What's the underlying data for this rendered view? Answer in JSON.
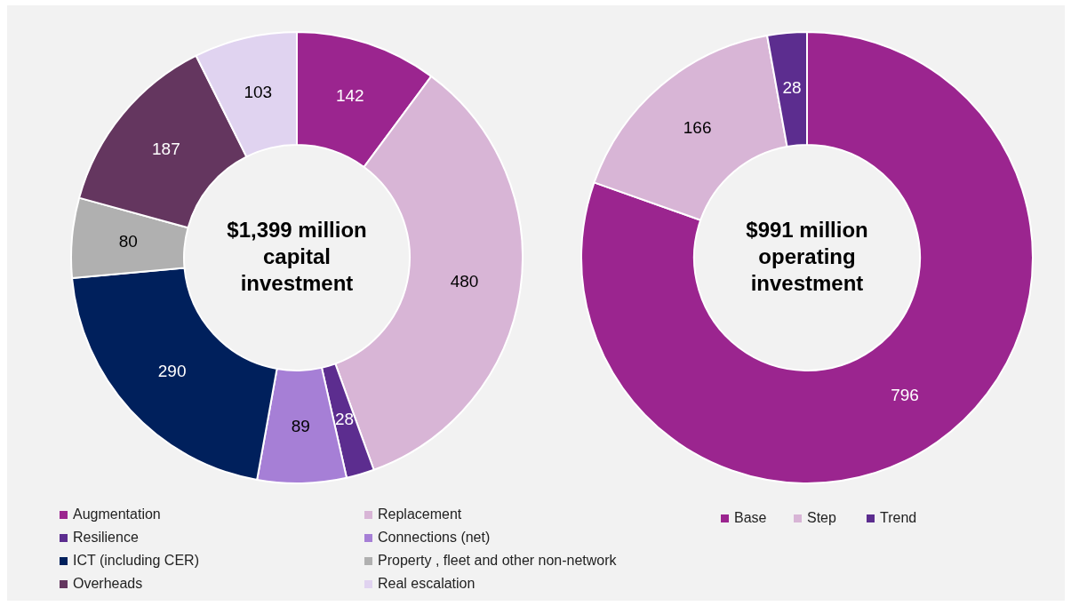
{
  "chart_data": [
    {
      "type": "donut",
      "title": "$1,399 million capital investment",
      "categories": [
        "Augmentation",
        "Replacement",
        "Resilience",
        "Connections (net)",
        "ICT (including CER)",
        "Property , fleet and other non-network",
        "Overheads",
        "Real escalation"
      ],
      "values": [
        142,
        480,
        28,
        89,
        290,
        80,
        187,
        103
      ],
      "colors": [
        "#9b258f",
        "#d8b5d6",
        "#5c2d8f",
        "#a67fd6",
        "#00205c",
        "#b0b0b0",
        "#64365f",
        "#e0d3f0"
      ],
      "data_labels": true,
      "legend": "bottom"
    },
    {
      "type": "donut",
      "title": "$991 million operating investment",
      "categories": [
        "Base",
        "Step",
        "Trend"
      ],
      "values": [
        796,
        166,
        28
      ],
      "colors": [
        "#9b258f",
        "#d8b5d6",
        "#5c2d8f"
      ],
      "data_labels": true,
      "legend": "bottom"
    }
  ]
}
